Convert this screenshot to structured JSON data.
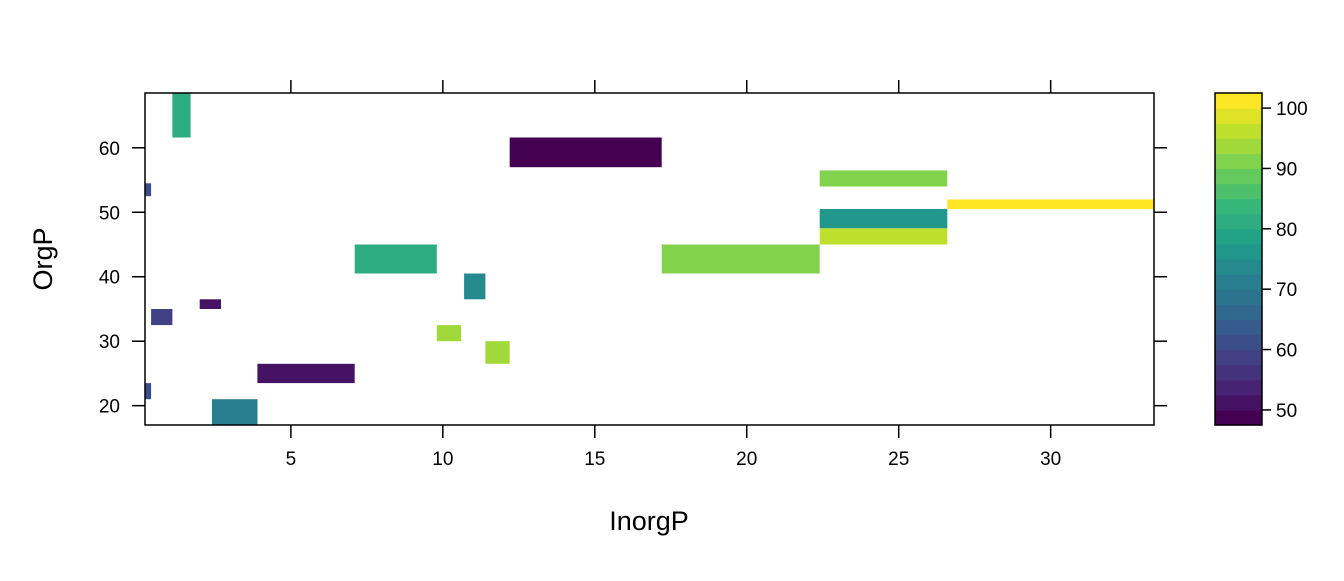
{
  "chart_data": {
    "type": "heatmap",
    "title": "",
    "xlabel": "InorgP",
    "ylabel": "OrgP",
    "xlim": [
      0.2,
      33.4
    ],
    "ylim": [
      17,
      68.5
    ],
    "x_ticks": [
      5,
      10,
      15,
      20,
      25,
      30
    ],
    "y_ticks": [
      20,
      30,
      40,
      50,
      60
    ],
    "x_tick_labels": [
      "5",
      "10",
      "15",
      "20",
      "25",
      "30"
    ],
    "y_tick_labels": [
      "20",
      "30",
      "40",
      "50",
      "60"
    ],
    "grid": false,
    "legend": "right",
    "colorkey": {
      "range": [
        47.5,
        102.5
      ],
      "ticks": [
        50,
        60,
        70,
        80,
        90,
        100
      ],
      "tick_labels": [
        "50",
        "60",
        "70",
        "80",
        "90",
        "100"
      ],
      "step": 2.5,
      "palette": "viridis"
    },
    "cells": [
      {
        "x0": 1.1,
        "x1": 1.7,
        "y0": 61.6,
        "y1": 68.5,
        "value": 80
      },
      {
        "x0": 12.2,
        "x1": 17.2,
        "y0": 57.0,
        "y1": 61.6,
        "value": 49
      },
      {
        "x0": 0.2,
        "x1": 0.4,
        "y0": 52.5,
        "y1": 54.5,
        "value": 60
      },
      {
        "x0": 22.4,
        "x1": 26.6,
        "y0": 54.0,
        "y1": 56.5,
        "value": 92
      },
      {
        "x0": 26.6,
        "x1": 33.4,
        "y0": 50.5,
        "y1": 52.0,
        "value": 101
      },
      {
        "x0": 22.4,
        "x1": 26.6,
        "y0": 47.5,
        "y1": 50.5,
        "value": 77
      },
      {
        "x0": 22.4,
        "x1": 26.6,
        "y0": 45.0,
        "y1": 47.5,
        "value": 96
      },
      {
        "x0": 7.1,
        "x1": 9.8,
        "y0": 40.5,
        "y1": 45.0,
        "value": 80
      },
      {
        "x0": 17.2,
        "x1": 22.4,
        "y0": 40.5,
        "y1": 45.0,
        "value": 92
      },
      {
        "x0": 10.7,
        "x1": 11.4,
        "y0": 36.5,
        "y1": 40.5,
        "value": 74
      },
      {
        "x0": 2.0,
        "x1": 2.7,
        "y0": 35.0,
        "y1": 36.5,
        "value": 51
      },
      {
        "x0": 0.4,
        "x1": 1.1,
        "y0": 32.5,
        "y1": 35.0,
        "value": 59
      },
      {
        "x0": 9.8,
        "x1": 10.6,
        "y0": 30.0,
        "y1": 32.5,
        "value": 93
      },
      {
        "x0": 11.4,
        "x1": 12.2,
        "y0": 26.5,
        "y1": 30.0,
        "value": 93
      },
      {
        "x0": 3.9,
        "x1": 7.1,
        "y0": 23.5,
        "y1": 26.5,
        "value": 51
      },
      {
        "x0": 0.2,
        "x1": 0.4,
        "y0": 21.0,
        "y1": 23.5,
        "value": 60
      },
      {
        "x0": 2.4,
        "x1": 3.9,
        "y0": 17.0,
        "y1": 21.0,
        "value": 71
      }
    ]
  }
}
